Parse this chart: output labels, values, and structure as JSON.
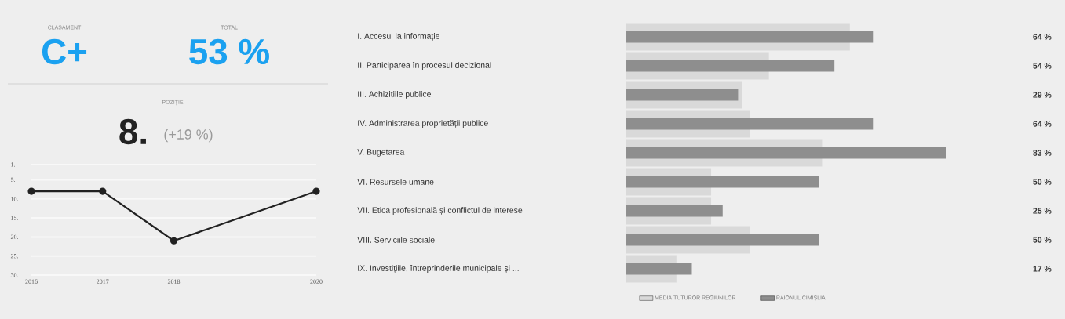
{
  "chart_data": [
    {
      "type": "other",
      "annotations": [
        "CLASAMENT",
        "C+",
        "TOTAL",
        "53 %",
        "POZIȚIE",
        "8.",
        "(+19 %)"
      ]
    },
    {
      "type": "line",
      "x": [
        2016,
        2017,
        2018,
        2020
      ],
      "values": [
        8,
        8,
        21,
        8
      ],
      "color": "#222222",
      "marker": "circle",
      "xlim": [
        2016,
        2020
      ],
      "xticks": [
        2016,
        2017,
        2018,
        2020
      ],
      "ylim": [
        30,
        1
      ],
      "yticks": [
        {
          "value": 1,
          "label": "1."
        },
        {
          "value": 5,
          "label": "5."
        },
        {
          "value": 10,
          "label": "10."
        },
        {
          "value": 15,
          "label": "15."
        },
        {
          "value": 20,
          "label": "20."
        },
        {
          "value": 25,
          "label": "25."
        },
        {
          "value": 30,
          "label": "30."
        }
      ],
      "grid": "y"
    },
    {
      "type": "bar",
      "orientation": "horizontal",
      "categories": [
        "I.   Accesul la informație",
        "II.   Participarea în procesul decizional",
        "III.   Achizițiile publice",
        "IV.   Administrarea proprietății publice",
        "V.   Bugetarea",
        "VI.   Resursele umane",
        "VII.   Etica profesională și conflictul de interese",
        "VIII.   Serviciile sociale",
        "IX.   Investițiile, întreprinderile municipale și ..."
      ],
      "series": [
        {
          "name": "MEDIA TUTUROR REGIUNILOR",
          "color": "#d9d9d9",
          "values": [
            58,
            37,
            30,
            32,
            51,
            22,
            22,
            32,
            13
          ]
        },
        {
          "name": "RAIONUL CIMIȘLIA",
          "color": "#8e8e8e",
          "values": [
            64,
            54,
            29,
            64,
            83,
            50,
            25,
            50,
            17
          ],
          "value_labels": [
            "64 %",
            "54 %",
            "29 %",
            "64 %",
            "83 %",
            "50 %",
            "25 %",
            "50 %",
            "17 %"
          ]
        }
      ],
      "legend": "bottom",
      "tick_labels": "y"
    }
  ]
}
